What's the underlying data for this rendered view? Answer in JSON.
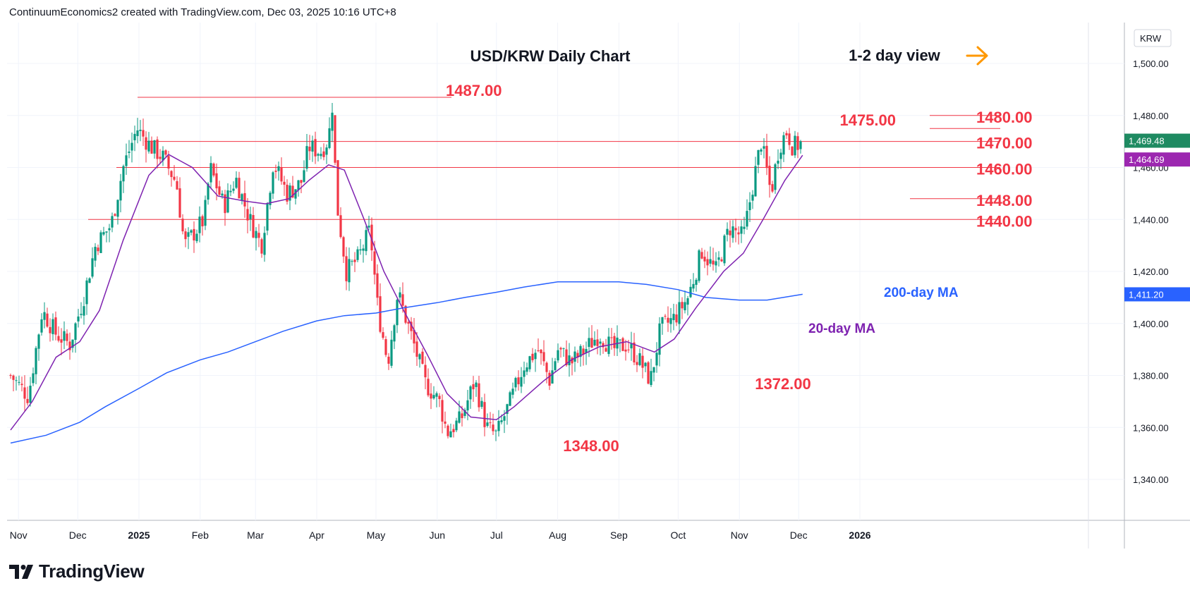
{
  "header": {
    "credit": "ContinuumEconomics2 created with TradingView.com, Dec 03, 2025 10:16 UTC+8"
  },
  "brand": {
    "name": "TradingView",
    "icon": "tradingview-logo-icon"
  },
  "chart_data": {
    "type": "candlestick",
    "title": "USD/KRW Daily Chart",
    "view_label": "1-2 day view",
    "view_icon": "arrow-right-icon",
    "currency_label": "KRW",
    "ylim": [
      1323,
      1518
    ],
    "y_ticks": [
      "1,340.00",
      "1,360.00",
      "1,380.00",
      "1,400.00",
      "1,420.00",
      "1,440.00",
      "1,460.00",
      "1,480.00",
      "1,500.00"
    ],
    "x_ticks": [
      "Nov",
      "Dec",
      "2025",
      "Feb",
      "Mar",
      "Apr",
      "May",
      "Jun",
      "Jul",
      "Aug",
      "Sep",
      "Oct",
      "Nov",
      "Dec",
      "2026"
    ],
    "grid": true,
    "colors": {
      "up": "#26a69a",
      "down": "#ef5350",
      "candle_body_up": "#089981",
      "candle_body_down": "#f23645",
      "level_line": "#f23645",
      "ma20": "#7e22b0",
      "ma200": "#2962ff",
      "annotation": "#f23645",
      "arrow": "#ff9800",
      "last_price_bg": "#1e8a61",
      "ma20_bg": "#9c27b0",
      "ma200_bg": "#2962ff"
    },
    "levels": [
      {
        "label": "1487.00",
        "value": 1487
      },
      {
        "label": "1480.00",
        "value": 1480
      },
      {
        "label": "1475.00",
        "value": 1475
      },
      {
        "label": "1470.00",
        "value": 1470
      },
      {
        "label": "1460.00",
        "value": 1460
      },
      {
        "label": "1448.00",
        "value": 1448
      },
      {
        "label": "1440.00",
        "value": 1440
      }
    ],
    "annotations": [
      {
        "label": "1372.00",
        "value": 1372
      },
      {
        "label": "1348.00",
        "value": 1348
      }
    ],
    "price_badges": [
      {
        "label": "1,469.48",
        "value": 1469.48,
        "kind": "last"
      },
      {
        "label": "1,464.69",
        "value": 1464.69,
        "kind": "ma20"
      },
      {
        "label": "1,411.20",
        "value": 1411.2,
        "kind": "ma200"
      }
    ],
    "ma_labels": {
      "ma200": "200-day MA",
      "ma20": "20-day MA"
    },
    "series": [
      {
        "name": "200-day MA",
        "points": [
          [
            "2024-10-28",
            1354
          ],
          [
            "2024-11-15",
            1357
          ],
          [
            "2024-12-02",
            1362
          ],
          [
            "2024-12-15",
            1368
          ],
          [
            "2025-01-01",
            1375
          ],
          [
            "2025-01-15",
            1381
          ],
          [
            "2025-02-01",
            1386
          ],
          [
            "2025-02-15",
            1389
          ],
          [
            "2025-03-01",
            1393
          ],
          [
            "2025-03-15",
            1397
          ],
          [
            "2025-04-01",
            1401
          ],
          [
            "2025-04-15",
            1403
          ],
          [
            "2025-05-01",
            1404
          ],
          [
            "2025-05-15",
            1406
          ],
          [
            "2025-06-01",
            1408
          ],
          [
            "2025-06-15",
            1410
          ],
          [
            "2025-07-01",
            1412
          ],
          [
            "2025-07-15",
            1414
          ],
          [
            "2025-08-01",
            1416
          ],
          [
            "2025-08-15",
            1416
          ],
          [
            "2025-09-01",
            1416
          ],
          [
            "2025-09-15",
            1415
          ],
          [
            "2025-10-01",
            1413
          ],
          [
            "2025-10-15",
            1410
          ],
          [
            "2025-11-01",
            1409
          ],
          [
            "2025-11-15",
            1409
          ],
          [
            "2025-12-03",
            1411.2
          ]
        ]
      },
      {
        "name": "20-day MA",
        "points": [
          [
            "2024-10-28",
            1359
          ],
          [
            "2024-11-08",
            1370
          ],
          [
            "2024-11-20",
            1387
          ],
          [
            "2024-12-02",
            1393
          ],
          [
            "2024-12-12",
            1405
          ],
          [
            "2024-12-24",
            1432
          ],
          [
            "2025-01-06",
            1457
          ],
          [
            "2025-01-16",
            1465
          ],
          [
            "2025-01-28",
            1460
          ],
          [
            "2025-02-10",
            1449
          ],
          [
            "2025-02-24",
            1447
          ],
          [
            "2025-03-06",
            1446
          ],
          [
            "2025-03-18",
            1448
          ],
          [
            "2025-03-28",
            1455
          ],
          [
            "2025-04-07",
            1461
          ],
          [
            "2025-04-15",
            1459
          ],
          [
            "2025-04-25",
            1440
          ],
          [
            "2025-05-05",
            1420
          ],
          [
            "2025-05-15",
            1405
          ],
          [
            "2025-05-27",
            1388
          ],
          [
            "2025-06-06",
            1373
          ],
          [
            "2025-06-18",
            1364
          ],
          [
            "2025-07-01",
            1363
          ],
          [
            "2025-07-10",
            1368
          ],
          [
            "2025-07-25",
            1378
          ],
          [
            "2025-08-08",
            1386
          ],
          [
            "2025-08-22",
            1391
          ],
          [
            "2025-09-05",
            1393
          ],
          [
            "2025-09-19",
            1389
          ],
          [
            "2025-09-29",
            1394
          ],
          [
            "2025-10-10",
            1406
          ],
          [
            "2025-10-24",
            1420
          ],
          [
            "2025-11-03",
            1427
          ],
          [
            "2025-11-13",
            1440
          ],
          [
            "2025-11-24",
            1455
          ],
          [
            "2025-12-03",
            1464.7
          ]
        ]
      }
    ],
    "price_path": [
      [
        "2024-10-28",
        1380
      ],
      [
        "2024-11-06",
        1372
      ],
      [
        "2024-11-13",
        1405
      ],
      [
        "2024-11-20",
        1396
      ],
      [
        "2024-11-27",
        1392
      ],
      [
        "2024-12-04",
        1410
      ],
      [
        "2024-12-10",
        1430
      ],
      [
        "2024-12-18",
        1438
      ],
      [
        "2024-12-24",
        1460
      ],
      [
        "2024-12-31",
        1475
      ],
      [
        "2025-01-07",
        1468
      ],
      [
        "2025-01-13",
        1464
      ],
      [
        "2025-01-20",
        1454
      ],
      [
        "2025-01-24",
        1430
      ],
      [
        "2025-02-03",
        1440
      ],
      [
        "2025-02-06",
        1460
      ],
      [
        "2025-02-13",
        1445
      ],
      [
        "2025-02-19",
        1456
      ],
      [
        "2025-02-26",
        1440
      ],
      [
        "2025-03-04",
        1430
      ],
      [
        "2025-03-10",
        1462
      ],
      [
        "2025-03-17",
        1450
      ],
      [
        "2025-03-24",
        1454
      ],
      [
        "2025-03-28",
        1468
      ],
      [
        "2025-04-03",
        1466
      ],
      [
        "2025-04-07",
        1471
      ],
      [
        "2025-04-09",
        1485
      ],
      [
        "2025-04-11",
        1447
      ],
      [
        "2025-04-16",
        1420
      ],
      [
        "2025-04-22",
        1425
      ],
      [
        "2025-04-28",
        1436
      ],
      [
        "2025-05-02",
        1405
      ],
      [
        "2025-05-07",
        1385
      ],
      [
        "2025-05-12",
        1412
      ],
      [
        "2025-05-19",
        1395
      ],
      [
        "2025-05-26",
        1377
      ],
      [
        "2025-06-02",
        1370
      ],
      [
        "2025-06-06",
        1358
      ],
      [
        "2025-06-13",
        1363
      ],
      [
        "2025-06-20",
        1378
      ],
      [
        "2025-06-26",
        1360
      ],
      [
        "2025-07-01",
        1357
      ],
      [
        "2025-07-08",
        1370
      ],
      [
        "2025-07-15",
        1384
      ],
      [
        "2025-07-22",
        1390
      ],
      [
        "2025-07-28",
        1378
      ],
      [
        "2025-08-01",
        1390
      ],
      [
        "2025-08-08",
        1385
      ],
      [
        "2025-08-15",
        1390
      ],
      [
        "2025-08-22",
        1396
      ],
      [
        "2025-08-29",
        1390
      ],
      [
        "2025-09-05",
        1392
      ],
      [
        "2025-09-12",
        1385
      ],
      [
        "2025-09-17",
        1378
      ],
      [
        "2025-09-22",
        1398
      ],
      [
        "2025-09-29",
        1402
      ],
      [
        "2025-10-06",
        1410
      ],
      [
        "2025-10-13",
        1428
      ],
      [
        "2025-10-20",
        1420
      ],
      [
        "2025-10-27",
        1437
      ],
      [
        "2025-11-03",
        1433
      ],
      [
        "2025-11-07",
        1450
      ],
      [
        "2025-11-12",
        1470
      ],
      [
        "2025-11-17",
        1450
      ],
      [
        "2025-11-21",
        1468
      ],
      [
        "2025-11-25",
        1474
      ],
      [
        "2025-11-28",
        1468
      ],
      [
        "2025-12-03",
        1469.5
      ]
    ]
  }
}
